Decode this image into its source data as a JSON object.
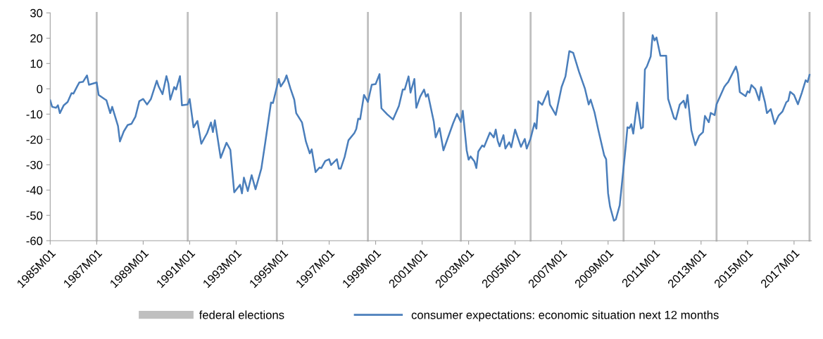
{
  "chart_data": {
    "type": "line",
    "x": [
      "1985-01",
      "1985-02",
      "1985-04",
      "1985-05",
      "1985-06",
      "1985-08",
      "1985-10",
      "1985-12",
      "1986-01",
      "1986-03",
      "1986-04",
      "1986-06",
      "1986-08",
      "1986-09",
      "1987-01",
      "1987-02",
      "1987-05",
      "1987-06",
      "1987-08",
      "1987-09",
      "1987-12",
      "1988-01",
      "1988-03",
      "1988-05",
      "1988-07",
      "1988-09",
      "1988-11",
      "1989-01",
      "1989-03",
      "1989-05",
      "1989-08",
      "1989-09",
      "1989-11",
      "1990-01",
      "1990-02",
      "1990-03",
      "1990-05",
      "1990-06",
      "1990-08",
      "1990-09",
      "1990-12",
      "1991-01",
      "1991-03",
      "1991-05",
      "1991-07",
      "1991-10",
      "1991-12",
      "1992-01",
      "1992-02",
      "1992-05",
      "1992-08",
      "1992-10",
      "1992-12",
      "1993-03",
      "1993-04",
      "1993-05",
      "1993-07",
      "1993-09",
      "1993-11",
      "1994-02",
      "1994-04",
      "1994-07",
      "1994-08",
      "1994-11",
      "1994-12",
      "1995-02",
      "1995-03",
      "1995-05",
      "1995-07",
      "1995-08",
      "1995-11",
      "1996-01",
      "1996-03",
      "1996-04",
      "1996-06",
      "1996-08",
      "1996-09",
      "1996-11",
      "1997-01",
      "1997-02",
      "1997-05",
      "1997-06",
      "1997-07",
      "1997-09",
      "1997-11",
      "1998-02",
      "1998-03",
      "1998-04",
      "1998-05",
      "1998-07",
      "1998-09",
      "1998-11",
      "1999-01",
      "1999-03",
      "1999-04",
      "1999-07",
      "1999-10",
      "2000-01",
      "2000-03",
      "2000-04",
      "2000-06",
      "2000-07",
      "2000-09",
      "2000-10",
      "2000-12",
      "2001-02",
      "2001-03",
      "2001-04",
      "2001-07",
      "2001-08",
      "2001-10",
      "2001-12",
      "2002-05",
      "2002-07",
      "2002-09",
      "2002-10",
      "2002-12",
      "2003-01",
      "2003-02",
      "2003-04",
      "2003-05",
      "2003-06",
      "2003-08",
      "2003-09",
      "2003-12",
      "2004-02",
      "2004-03",
      "2004-04",
      "2004-05",
      "2004-07",
      "2004-08",
      "2004-10",
      "2004-11",
      "2005-01",
      "2005-04",
      "2005-06",
      "2005-07",
      "2005-09",
      "2005-11",
      "2005-12",
      "2006-01",
      "2006-03",
      "2006-06",
      "2006-07",
      "2006-10",
      "2007-01",
      "2007-03",
      "2007-05",
      "2007-07",
      "2007-10",
      "2008-01",
      "2008-03",
      "2008-04",
      "2008-06",
      "2008-08",
      "2008-11",
      "2008-12",
      "2009-01",
      "2009-02",
      "2009-04",
      "2009-05",
      "2009-07",
      "2009-10",
      "2009-11",
      "2009-12",
      "2010-01",
      "2010-02",
      "2010-04",
      "2010-06",
      "2010-07",
      "2010-08",
      "2010-09",
      "2010-11",
      "2010-12",
      "2011-01",
      "2011-02",
      "2011-04",
      "2011-07",
      "2011-08",
      "2011-11",
      "2011-12",
      "2012-02",
      "2012-04",
      "2012-05",
      "2012-06",
      "2012-08",
      "2012-10",
      "2012-12",
      "2013-02",
      "2013-03",
      "2013-05",
      "2013-06",
      "2013-08",
      "2013-09",
      "2014-01",
      "2014-02",
      "2014-03",
      "2014-07",
      "2014-08",
      "2014-09",
      "2014-12",
      "2015-01",
      "2015-02",
      "2015-03",
      "2015-05",
      "2015-07",
      "2015-08",
      "2015-10",
      "2015-11",
      "2016-01",
      "2016-03",
      "2016-05",
      "2016-07",
      "2016-09",
      "2016-10",
      "2016-11",
      "2017-01",
      "2017-03",
      "2017-05",
      "2017-07",
      "2017-08",
      "2017-09"
    ],
    "series": [
      {
        "name": "consumer expectations: economic situation next 12 months",
        "color": "#4a7ebb",
        "values": [
          -4.5,
          -7.1,
          -7.5,
          -6.5,
          -9.6,
          -6.5,
          -5.2,
          -1.7,
          -1.9,
          1.1,
          2.5,
          2.8,
          5.3,
          1.6,
          2.5,
          -2.4,
          -4,
          -4.5,
          -9.6,
          -7.1,
          -14.7,
          -20.8,
          -16.8,
          -14.3,
          -13.8,
          -11,
          -4.9,
          -4,
          -6.2,
          -4,
          3.2,
          0.9,
          -2.1,
          5,
          2.1,
          -4.3,
          0.7,
          -0.3,
          5,
          -6.5,
          -6.2,
          -4,
          -15.2,
          -12.7,
          -21.7,
          -17.5,
          -13.3,
          -17.1,
          -12.4,
          -27.3,
          -21.3,
          -24.1,
          -40.9,
          -37.9,
          -41.3,
          -35.1,
          -40.4,
          -34.1,
          -39.7,
          -31.5,
          -21.3,
          -5.4,
          -5.6,
          3.9,
          0.9,
          3.2,
          5.3,
          0.2,
          -4.3,
          -9.6,
          -13.3,
          -20.8,
          -25.5,
          -23.9,
          -32.9,
          -31.1,
          -31.3,
          -28.5,
          -27.8,
          -30.1,
          -27.8,
          -31.5,
          -31.5,
          -26.9,
          -20.3,
          -17.5,
          -15.9,
          -11.8,
          -12,
          -2.4,
          -5.2,
          1.6,
          1.9,
          5.8,
          -7.7,
          -10.1,
          -12.1,
          -6.8,
          -0.3,
          -0.3,
          4.9,
          -1.5,
          3.9,
          -7.5,
          -3.1,
          -0.3,
          -3.1,
          -2.1,
          -12.9,
          -19.2,
          -15.5,
          -24.3,
          -13.6,
          -9.9,
          -13.1,
          -8.7,
          -24.3,
          -28,
          -26.7,
          -28.7,
          -31.3,
          -24.8,
          -22.4,
          -22.9,
          -17.3,
          -19.2,
          -16.1,
          -20.5,
          -22.7,
          -18.3,
          -23.6,
          -21.1,
          -23.1,
          -16.1,
          -22.9,
          -19.8,
          -23.6,
          -19.6,
          -13.6,
          -15.7,
          -4.9,
          -6.3,
          -0.9,
          -6.3,
          -10.3,
          0.7,
          4.9,
          14.9,
          14.2,
          6.7,
          0.2,
          -6.2,
          -4.3,
          -9.3,
          -16.4,
          -26.3,
          -27.8,
          -41.3,
          -46.5,
          -52.1,
          -51.6,
          -46,
          -23.6,
          -15.2,
          -15.5,
          -14,
          -17.7,
          -5.4,
          -15.7,
          -15.2,
          7.6,
          8.8,
          12.8,
          21.2,
          19.1,
          20.3,
          13.1,
          13.1,
          -4,
          -11.5,
          -12.1,
          -6.2,
          -4.7,
          -7.5,
          -2.4,
          -16.4,
          -22.3,
          -18.6,
          -17.1,
          -10.7,
          -13.2,
          -9.5,
          -10.4,
          -6.1,
          0.8,
          1.8,
          2.7,
          8.8,
          6,
          -1.3,
          -2.9,
          -1,
          -1.5,
          1.5,
          -0.1,
          -4.5,
          0.7,
          -5.3,
          -9.6,
          -8,
          -13.9,
          -10.6,
          -9,
          -5.3,
          -4.7,
          -1.2,
          -2.4,
          -6.1,
          -1.6,
          3.4,
          2.7,
          5.5
        ]
      }
    ],
    "xlim": [
      "1985-01",
      "2017-10"
    ],
    "xticks": [
      {
        "value": "1985-01",
        "label": "1985M01"
      },
      {
        "value": "1987-01",
        "label": "1987M01"
      },
      {
        "value": "1989-01",
        "label": "1989M01"
      },
      {
        "value": "1991-01",
        "label": "1991M01"
      },
      {
        "value": "1993-01",
        "label": "1993M01"
      },
      {
        "value": "1995-01",
        "label": "1995M01"
      },
      {
        "value": "1997-01",
        "label": "1997M01"
      },
      {
        "value": "1999-01",
        "label": "1999M01"
      },
      {
        "value": "2001-01",
        "label": "2001M01"
      },
      {
        "value": "2003-01",
        "label": "2003M01"
      },
      {
        "value": "2005-01",
        "label": "2005M01"
      },
      {
        "value": "2007-01",
        "label": "2007M01"
      },
      {
        "value": "2009-01",
        "label": "2009M01"
      },
      {
        "value": "2011-01",
        "label": "2011M01"
      },
      {
        "value": "2013-01",
        "label": "2013M01"
      },
      {
        "value": "2015-01",
        "label": "2015M01"
      },
      {
        "value": "2017-01",
        "label": "2017M01"
      }
    ],
    "ylim": [
      -60,
      30
    ],
    "yticks": [
      -60,
      -50,
      -40,
      -30,
      -20,
      -10,
      0,
      10,
      20,
      30
    ],
    "ref_lines": [
      {
        "axis": "x",
        "value": "1987-01",
        "label": "federal elections",
        "color": "#bfbfbf"
      },
      {
        "axis": "x",
        "value": "1990-12",
        "color": "#bfbfbf"
      },
      {
        "axis": "x",
        "value": "1994-10",
        "color": "#bfbfbf"
      },
      {
        "axis": "x",
        "value": "1998-09",
        "color": "#bfbfbf"
      },
      {
        "axis": "x",
        "value": "2002-09",
        "color": "#bfbfbf"
      },
      {
        "axis": "x",
        "value": "2005-09",
        "color": "#bfbfbf"
      },
      {
        "axis": "x",
        "value": "2009-09",
        "color": "#bfbfbf"
      },
      {
        "axis": "x",
        "value": "2013-09",
        "color": "#bfbfbf"
      },
      {
        "axis": "x",
        "value": "2017-09",
        "color": "#bfbfbf"
      }
    ],
    "grid": false,
    "legend": "bottom",
    "line_style": "solid",
    "marker": "none"
  }
}
